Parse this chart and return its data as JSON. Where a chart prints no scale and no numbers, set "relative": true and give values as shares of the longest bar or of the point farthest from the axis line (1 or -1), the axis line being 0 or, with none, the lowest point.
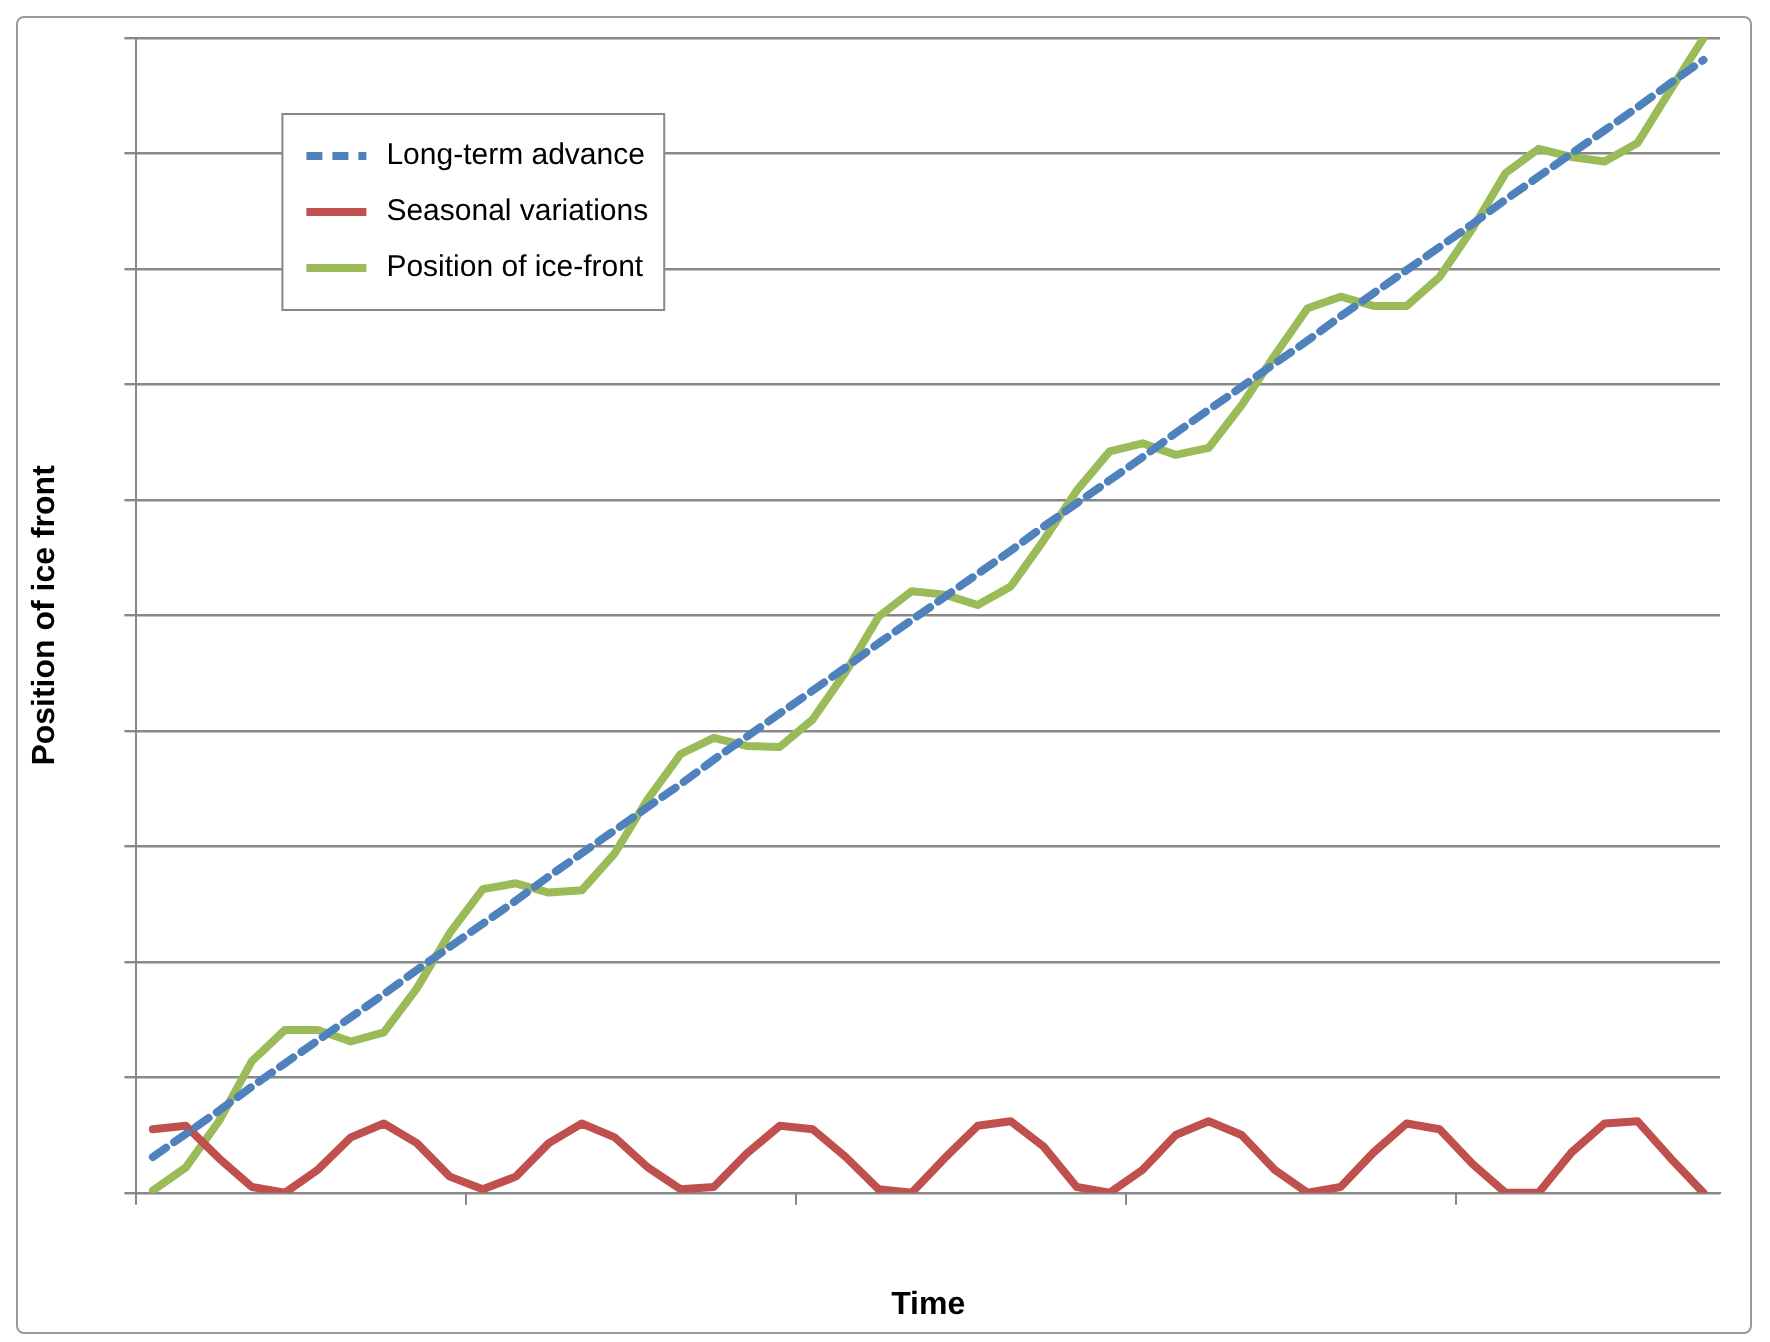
{
  "chart_data": {
    "type": "line",
    "xlabel": "Time",
    "ylabel": "Position of ice front",
    "relative": true,
    "grid": "y",
    "legend": "top left",
    "marker": "none",
    "categories": [
      null,
      null,
      null,
      null,
      null,
      null,
      null,
      null,
      null,
      null,
      null,
      null,
      null,
      null,
      null,
      null,
      null,
      null,
      null,
      null,
      null,
      null,
      null,
      null,
      null,
      null,
      null,
      null,
      null,
      null,
      null,
      null,
      null,
      null,
      null,
      null,
      null,
      null,
      null,
      null,
      null,
      null,
      null,
      null,
      null,
      null,
      null,
      null
    ],
    "series": [
      {
        "name": "Long-term advance",
        "color": "#4f81bd",
        "line_style": "dashed",
        "values": [
          0.031,
          0.051,
          0.071,
          0.092,
          0.112,
          0.132,
          0.152,
          0.172,
          0.193,
          0.213,
          0.233,
          0.253,
          0.274,
          0.294,
          0.314,
          0.334,
          0.354,
          0.375,
          0.395,
          0.415,
          0.435,
          0.455,
          0.476,
          0.496,
          0.516,
          0.536,
          0.556,
          0.577,
          0.597,
          0.617,
          0.637,
          0.658,
          0.678,
          0.698,
          0.718,
          0.738,
          0.759,
          0.779,
          0.799,
          0.819,
          0.839,
          0.86,
          0.88,
          0.9,
          0.92,
          0.94,
          0.961,
          0.981
        ]
      },
      {
        "name": "Seasonal variations",
        "color": "#c0504d",
        "line_style": "solid",
        "values": [
          0.055,
          0.058,
          0.03,
          0.005,
          0,
          0.02,
          0.048,
          0.06,
          0.043,
          0.014,
          0.003,
          0.014,
          0.043,
          0.06,
          0.048,
          0.022,
          0.003,
          0.005,
          0.034,
          0.058,
          0.055,
          0.031,
          0.003,
          0,
          0.03,
          0.058,
          0.062,
          0.04,
          0.005,
          0,
          0.02,
          0.05,
          0.062,
          0.05,
          0.02,
          0,
          0.005,
          0.035,
          0.06,
          0.055,
          0.025,
          0,
          0,
          0.035,
          0.06,
          0.062,
          0.03,
          0
        ]
      },
      {
        "name": "Position of ice-front",
        "color": "#9bbb59",
        "line_style": "solid",
        "values": [
          0.002,
          0.022,
          0.062,
          0.114,
          0.141,
          0.141,
          0.131,
          0.139,
          0.177,
          0.225,
          0.263,
          0.268,
          0.26,
          0.262,
          0.294,
          0.341,
          0.38,
          0.394,
          0.387,
          0.386,
          0.41,
          0.451,
          0.499,
          0.521,
          0.518,
          0.509,
          0.525,
          0.565,
          0.608,
          0.642,
          0.649,
          0.639,
          0.645,
          0.682,
          0.725,
          0.766,
          0.776,
          0.768,
          0.768,
          0.793,
          0.835,
          0.883,
          0.904,
          0.897,
          0.893,
          0.909,
          0.955,
          1
        ]
      }
    ]
  }
}
